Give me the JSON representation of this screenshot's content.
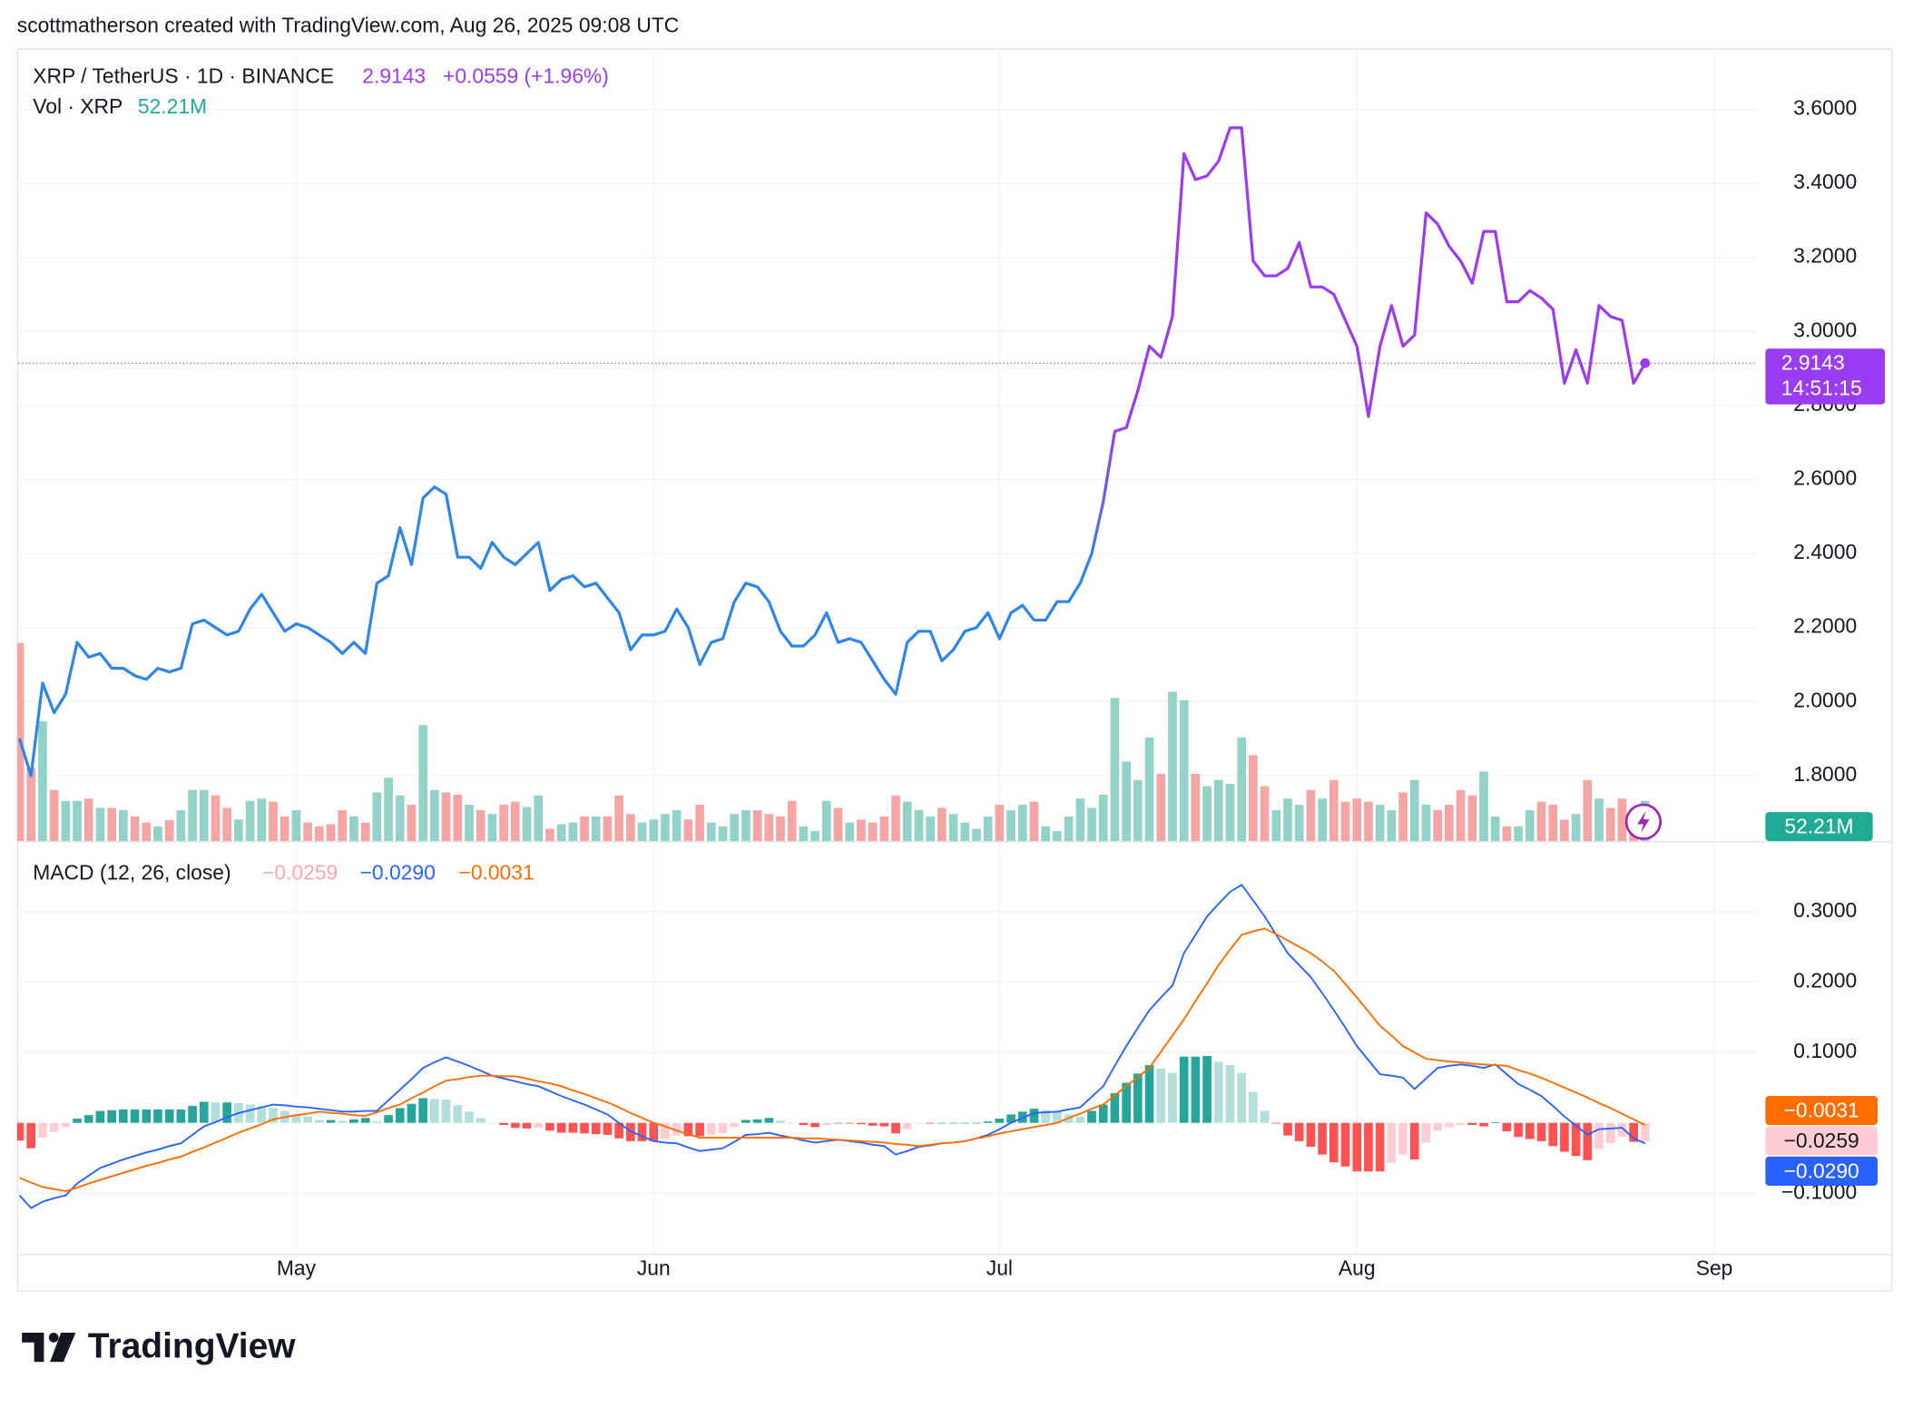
{
  "header": "scottmatherson created with TradingView.com, Aug 26, 2025 09:08 UTC",
  "logo": "TradingView",
  "chart_data": [
    {
      "type": "line",
      "title": "XRP / TetherUS · 1D · BINANCE",
      "categories": [
        null,
        null,
        null,
        null,
        null,
        null,
        null,
        null,
        null,
        null,
        null,
        null,
        null,
        null,
        null,
        null,
        null,
        null,
        null,
        null,
        null,
        null,
        null,
        null,
        "May",
        null,
        null,
        null,
        null,
        null,
        null,
        null,
        null,
        null,
        null,
        null,
        null,
        null,
        null,
        null,
        null,
        null,
        null,
        null,
        null,
        null,
        null,
        null,
        null,
        null,
        null,
        null,
        null,
        null,
        null,
        "Jun",
        null,
        null,
        null,
        null,
        null,
        null,
        null,
        null,
        null,
        null,
        null,
        null,
        null,
        null,
        null,
        null,
        null,
        null,
        null,
        null,
        null,
        null,
        null,
        null,
        null,
        null,
        null,
        null,
        null,
        "Jul",
        null,
        null,
        null,
        null,
        null,
        null,
        null,
        null,
        null,
        null,
        null,
        null,
        null,
        null,
        null,
        null,
        null,
        null,
        null,
        null,
        null,
        null,
        null,
        null,
        null,
        null,
        null,
        null,
        null,
        null,
        "Aug",
        null,
        null,
        null,
        null,
        null,
        null,
        null,
        null,
        null,
        null,
        null,
        null,
        null,
        null,
        null,
        null,
        null,
        null,
        null,
        null,
        null,
        null,
        null,
        null,
        null,
        null,
        null,
        null,
        null,
        null,
        "Sep",
        null,
        null,
        null
      ],
      "series": [
        {
          "type": "line",
          "colors": [
            "#2f86e8",
            "#9a3cf2"
          ],
          "change_label": "+0.0559 (+1.96%)",
          "countdown": "14:51:15",
          "values": [
            1.9,
            1.8,
            2.05,
            1.97,
            2.02,
            2.16,
            2.12,
            2.13,
            2.09,
            2.09,
            2.07,
            2.06,
            2.09,
            2.08,
            2.09,
            2.21,
            2.22,
            2.2,
            2.18,
            2.19,
            2.25,
            2.29,
            2.24,
            2.19,
            2.21,
            2.2,
            2.18,
            2.16,
            2.13,
            2.16,
            2.13,
            2.32,
            2.34,
            2.47,
            2.37,
            2.55,
            2.58,
            2.56,
            2.39,
            2.39,
            2.36,
            2.43,
            2.39,
            2.37,
            2.4,
            2.43,
            2.3,
            2.33,
            2.34,
            2.31,
            2.32,
            2.28,
            2.24,
            2.14,
            2.18,
            2.18,
            2.19,
            2.25,
            2.2,
            2.1,
            2.16,
            2.17,
            2.27,
            2.32,
            2.31,
            2.27,
            2.19,
            2.15,
            2.15,
            2.18,
            2.24,
            2.16,
            2.17,
            2.16,
            2.11,
            2.06,
            2.02,
            2.16,
            2.19,
            2.19,
            2.11,
            2.14,
            2.19,
            2.2,
            2.24,
            2.17,
            2.24,
            2.26,
            2.22,
            2.22,
            2.27,
            2.27,
            2.32,
            2.4,
            2.54,
            2.73,
            2.74,
            2.84,
            2.96,
            2.93,
            3.04,
            3.48,
            3.41,
            3.42,
            3.46,
            3.55,
            3.55,
            3.19,
            3.15,
            3.15,
            3.17,
            3.24,
            3.12,
            3.12,
            3.1,
            3.03,
            2.96,
            2.77,
            2.96,
            3.07,
            2.96,
            2.99,
            3.32,
            3.29,
            3.23,
            3.19,
            3.13,
            3.27,
            3.27,
            3.08,
            3.08,
            3.11,
            3.09,
            3.06,
            2.86,
            2.95,
            2.86,
            3.07,
            3.04,
            3.03,
            2.86,
            2.9143,
            null,
            null,
            null,
            null,
            null,
            null,
            null,
            null,
            null
          ]
        },
        {
          "type": "bar",
          "name": "Vol · XRP",
          "colors": {
            "up": "#92d2c9",
            "down": "#f6a5a5"
          },
          "last_label": "52.21M",
          "values": [
            256,
            95,
            155,
            66,
            52,
            52,
            55,
            43,
            43,
            40,
            32,
            24,
            19,
            27,
            40,
            66,
            66,
            59,
            43,
            28,
            52,
            55,
            51,
            32,
            40,
            24,
            19,
            22,
            40,
            32,
            24,
            63,
            82,
            59,
            47,
            150,
            66,
            63,
            60,
            47,
            40,
            35,
            47,
            51,
            44,
            59,
            16,
            22,
            24,
            32,
            32,
            32,
            59,
            35,
            24,
            28,
            35,
            40,
            28,
            47,
            24,
            19,
            35,
            40,
            40,
            35,
            32,
            52,
            19,
            13,
            52,
            43,
            24,
            28,
            24,
            32,
            59,
            51,
            40,
            32,
            43,
            35,
            24,
            16,
            32,
            47,
            40,
            47,
            51,
            19,
            13,
            32,
            55,
            43,
            60,
            185,
            103,
            79,
            134,
            87,
            193,
            182,
            87,
            71,
            79,
            74,
            134,
            111,
            71,
            40,
            55,
            47,
            66,
            55,
            79,
            51,
            55,
            51,
            47,
            40,
            63,
            79,
            47,
            40,
            47,
            66,
            59,
            90,
            32,
            19,
            19,
            40,
            51,
            47,
            28,
            35,
            79,
            55,
            43,
            55,
            40,
            52.21,
            null,
            null,
            null,
            null,
            null,
            null,
            null,
            null,
            null
          ]
        }
      ],
      "ylim": [
        1.623,
        3.764
      ],
      "yticks": [
        {
          "value": 1.8,
          "label": "1.8000"
        },
        {
          "value": 2.0,
          "label": "2.0000"
        },
        {
          "value": 2.2,
          "label": "2.2000"
        },
        {
          "value": 2.4,
          "label": "2.4000"
        },
        {
          "value": 2.6,
          "label": "2.6000"
        },
        {
          "value": 2.8,
          "label": "2.8000"
        },
        {
          "value": 3.0,
          "label": "3.0000"
        },
        {
          "value": 3.2,
          "label": "3.2000"
        },
        {
          "value": 3.4,
          "label": "3.4000"
        },
        {
          "value": 3.6,
          "label": "3.6000"
        }
      ],
      "grid": true
    },
    {
      "type": "macd",
      "title": "MACD (12, 26, close)",
      "series": [
        {
          "type": "histogram",
          "colors": {
            "up_rising": "#26a69a",
            "up_falling": "#b2dfdb",
            "down_falling": "#ff5252",
            "down_rising": "#ffcdd2"
          },
          "last_label": "−0.0259",
          "values": [
            -0.025,
            -0.036,
            -0.021,
            -0.013,
            -0.006,
            0.006,
            0.011,
            0.017,
            0.018,
            0.019,
            0.019,
            0.019,
            0.019,
            0.019,
            0.019,
            0.024,
            0.03,
            0.029,
            0.029,
            0.028,
            0.026,
            0.024,
            0.021,
            0.017,
            0.012,
            0.009,
            0.004,
            0.004,
            0.003,
            0.005,
            0.007,
            0.002,
            0.011,
            0.021,
            0.027,
            0.035,
            0.034,
            0.033,
            0.025,
            0.016,
            0.007,
            0.0,
            -0.003,
            -0.007,
            -0.008,
            -0.007,
            -0.011,
            -0.014,
            -0.014,
            -0.015,
            -0.016,
            -0.017,
            -0.022,
            -0.026,
            -0.026,
            -0.026,
            -0.023,
            -0.018,
            -0.019,
            -0.019,
            -0.017,
            -0.015,
            -0.006,
            0.004,
            0.005,
            0.007,
            0.003,
            0.0,
            -0.003,
            -0.006,
            -0.003,
            0.0,
            -0.001,
            -0.002,
            -0.004,
            -0.005,
            -0.015,
            -0.009,
            -0.001,
            -0.001,
            0.0,
            0.0,
            0.0,
            0.0,
            0.002,
            0.006,
            0.012,
            0.016,
            0.02,
            0.018,
            0.016,
            0.012,
            0.009,
            0.017,
            0.026,
            0.042,
            0.057,
            0.07,
            0.082,
            0.077,
            0.071,
            0.094,
            0.094,
            0.095,
            0.087,
            0.082,
            0.071,
            0.044,
            0.017,
            -0.001,
            -0.018,
            -0.026,
            -0.034,
            -0.045,
            -0.056,
            -0.062,
            -0.069,
            -0.069,
            -0.069,
            -0.057,
            -0.045,
            -0.052,
            -0.028,
            -0.011,
            -0.006,
            -0.003,
            -0.003,
            -0.005,
            0.001,
            -0.012,
            -0.02,
            -0.023,
            -0.026,
            -0.033,
            -0.041,
            -0.047,
            -0.053,
            -0.037,
            -0.029,
            -0.02,
            -0.027,
            -0.0259,
            null,
            null,
            null,
            null,
            null,
            null,
            null,
            null,
            null
          ]
        },
        {
          "type": "line",
          "color": "#2962ff",
          "last_label": "−0.0290",
          "values": [
            -0.103,
            -0.121,
            -0.112,
            -0.107,
            -0.103,
            -0.086,
            -0.075,
            -0.064,
            -0.058,
            -0.052,
            -0.047,
            -0.042,
            -0.038,
            -0.033,
            -0.029,
            -0.017,
            -0.005,
            0.001,
            0.008,
            0.014,
            0.018,
            0.022,
            0.026,
            0.025,
            0.023,
            0.022,
            0.02,
            0.018,
            0.016,
            0.016,
            0.017,
            0.017,
            0.032,
            0.047,
            0.062,
            0.078,
            0.086,
            0.093,
            0.087,
            0.081,
            0.074,
            0.067,
            0.063,
            0.059,
            0.055,
            0.052,
            0.045,
            0.038,
            0.032,
            0.026,
            0.019,
            0.012,
            0.0,
            -0.012,
            -0.019,
            -0.026,
            -0.028,
            -0.029,
            -0.035,
            -0.04,
            -0.038,
            -0.036,
            -0.027,
            -0.017,
            -0.016,
            -0.014,
            -0.018,
            -0.021,
            -0.025,
            -0.028,
            -0.026,
            -0.024,
            -0.026,
            -0.028,
            -0.031,
            -0.033,
            -0.045,
            -0.04,
            -0.034,
            -0.032,
            -0.029,
            -0.028,
            -0.026,
            -0.022,
            -0.017,
            -0.009,
            0.0,
            0.007,
            0.014,
            0.015,
            0.016,
            0.019,
            0.022,
            0.037,
            0.052,
            0.081,
            0.109,
            0.135,
            0.16,
            0.178,
            0.195,
            0.241,
            0.267,
            0.293,
            0.311,
            0.328,
            0.338,
            0.316,
            0.293,
            0.267,
            0.241,
            0.224,
            0.207,
            0.184,
            0.16,
            0.135,
            0.109,
            0.089,
            0.069,
            0.067,
            0.064,
            0.048,
            0.063,
            0.078,
            0.081,
            0.083,
            0.081,
            0.078,
            0.083,
            0.069,
            0.055,
            0.047,
            0.038,
            0.024,
            0.009,
            -0.004,
            -0.017,
            -0.009,
            -0.008,
            -0.007,
            -0.022,
            -0.029,
            null,
            null,
            null,
            null,
            null,
            null,
            null,
            null,
            null
          ]
        },
        {
          "type": "line",
          "color": "#ff6d00",
          "last_label": "−0.0031",
          "values": [
            -0.078,
            -0.085,
            -0.091,
            -0.094,
            -0.097,
            -0.092,
            -0.086,
            -0.081,
            -0.076,
            -0.071,
            -0.066,
            -0.061,
            -0.057,
            -0.052,
            -0.048,
            -0.041,
            -0.035,
            -0.028,
            -0.021,
            -0.014,
            -0.008,
            -0.002,
            0.005,
            0.008,
            0.011,
            0.013,
            0.016,
            0.014,
            0.013,
            0.011,
            0.01,
            0.015,
            0.021,
            0.026,
            0.035,
            0.043,
            0.052,
            0.06,
            0.062,
            0.065,
            0.067,
            0.067,
            0.066,
            0.066,
            0.063,
            0.059,
            0.056,
            0.052,
            0.046,
            0.041,
            0.035,
            0.029,
            0.022,
            0.014,
            0.007,
            0.0,
            -0.005,
            -0.011,
            -0.016,
            -0.021,
            -0.021,
            -0.021,
            -0.021,
            -0.021,
            -0.021,
            -0.021,
            -0.021,
            -0.021,
            -0.022,
            -0.022,
            -0.023,
            -0.024,
            -0.025,
            -0.026,
            -0.027,
            -0.028,
            -0.03,
            -0.031,
            -0.033,
            -0.031,
            -0.029,
            -0.028,
            -0.026,
            -0.022,
            -0.019,
            -0.015,
            -0.012,
            -0.009,
            -0.006,
            -0.003,
            0.0,
            0.007,
            0.013,
            0.02,
            0.026,
            0.039,
            0.052,
            0.065,
            0.078,
            0.101,
            0.124,
            0.147,
            0.173,
            0.198,
            0.224,
            0.246,
            0.267,
            0.272,
            0.276,
            0.268,
            0.259,
            0.25,
            0.241,
            0.229,
            0.216,
            0.197,
            0.178,
            0.158,
            0.138,
            0.124,
            0.109,
            0.1,
            0.091,
            0.089,
            0.087,
            0.086,
            0.084,
            0.083,
            0.082,
            0.081,
            0.075,
            0.07,
            0.064,
            0.057,
            0.05,
            0.043,
            0.036,
            0.028,
            0.021,
            0.013,
            0.005,
            -0.0031,
            null,
            null,
            null,
            null,
            null,
            null,
            null,
            null,
            null
          ]
        }
      ],
      "ylim": [
        -0.186,
        0.4
      ],
      "yticks": [
        {
          "value": -0.1,
          "label": "−0.1000"
        },
        {
          "value": 0.1,
          "label": "0.1000"
        },
        {
          "value": 0.2,
          "label": "0.2000"
        },
        {
          "value": 0.3,
          "label": "0.3000"
        }
      ],
      "grid": true
    }
  ]
}
